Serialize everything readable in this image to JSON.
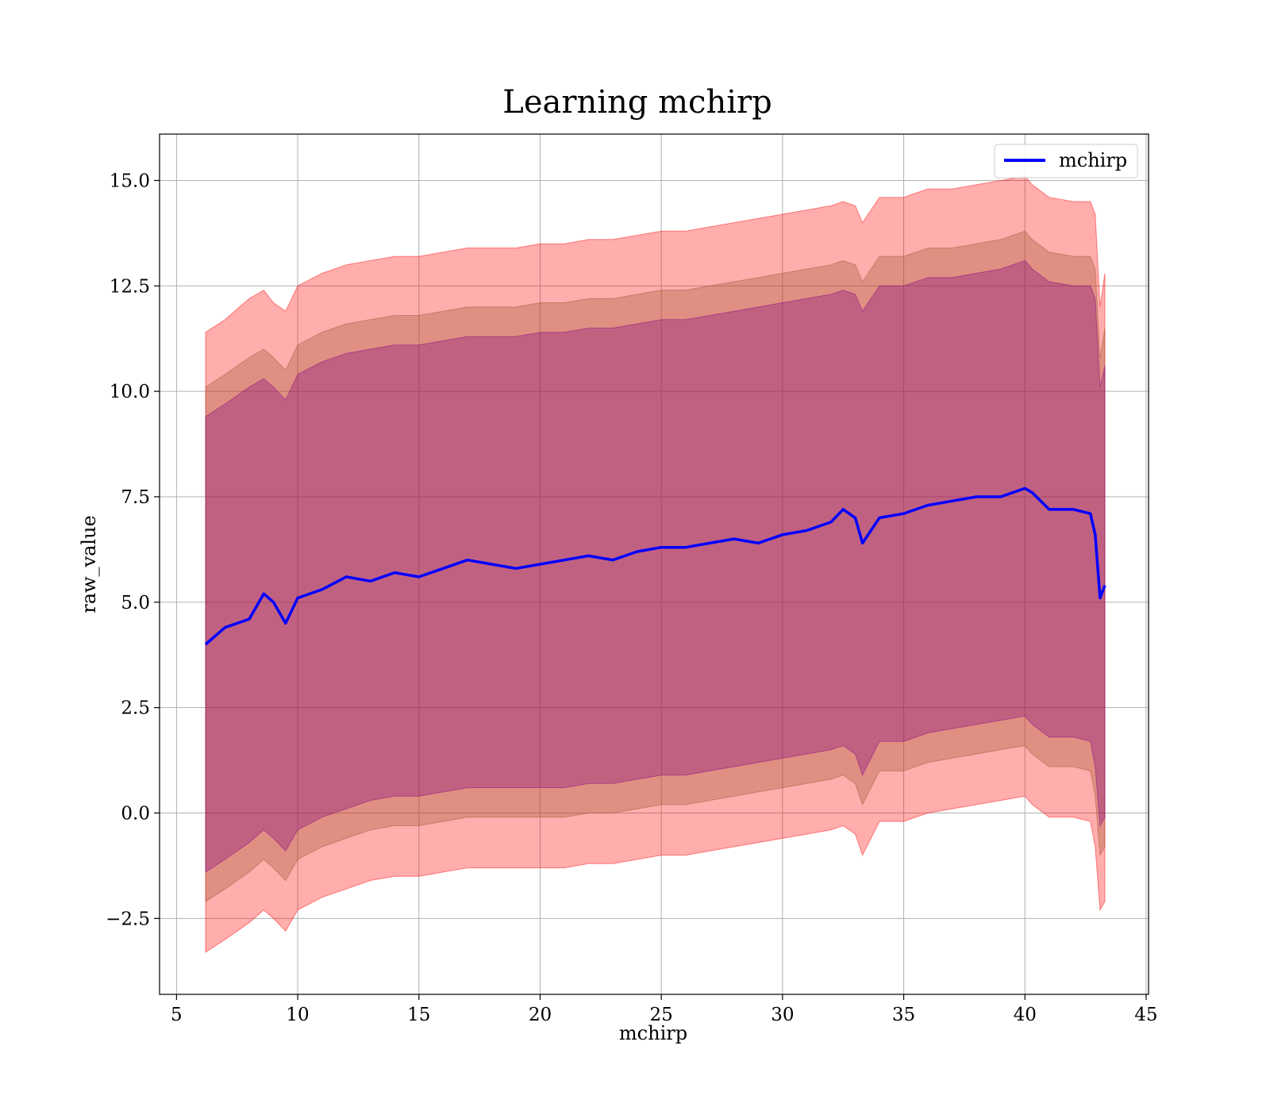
{
  "chart_data": {
    "type": "area",
    "title": "Learning mchirp",
    "xlabel": "mchirp",
    "ylabel": "raw_value",
    "xlim": [
      4.3,
      45.1
    ],
    "ylim": [
      -4.3,
      16.1
    ],
    "xticks": [
      5,
      10,
      15,
      20,
      25,
      30,
      35,
      40,
      45
    ],
    "xtick_labels": [
      "5",
      "10",
      "15",
      "20",
      "25",
      "30",
      "35",
      "40",
      "45"
    ],
    "yticks": [
      -2.5,
      0.0,
      2.5,
      5.0,
      7.5,
      10.0,
      12.5,
      15.0
    ],
    "ytick_labels": [
      "−2.5",
      "0.0",
      "2.5",
      "5.0",
      "7.5",
      "10.0",
      "12.5",
      "15.0"
    ],
    "grid": true,
    "legend": {
      "position": "top-right",
      "entries": [
        "mchirp"
      ]
    },
    "colors": {
      "line": "#0000ff",
      "band_outer": "#ff0000",
      "band_middle": "#a0522d",
      "band_inner": "#800080"
    },
    "x": [
      6.2,
      7.0,
      8.0,
      8.6,
      9.0,
      9.5,
      10.0,
      11.0,
      12.0,
      13.0,
      14.0,
      15.0,
      16.0,
      17.0,
      18.0,
      19.0,
      20.0,
      21.0,
      22.0,
      23.0,
      24.0,
      25.0,
      26.0,
      27.0,
      28.0,
      29.0,
      30.0,
      31.0,
      32.0,
      32.5,
      33.0,
      33.3,
      34.0,
      35.0,
      35.5,
      36.0,
      37.0,
      38.0,
      39.0,
      40.0,
      40.3,
      41.0,
      42.0,
      42.7,
      42.9,
      43.1,
      43.3
    ],
    "series": [
      {
        "name": "mchirp",
        "values": [
          4.0,
          4.4,
          4.6,
          5.2,
          5.0,
          4.5,
          5.1,
          5.3,
          5.6,
          5.5,
          5.7,
          5.6,
          5.8,
          6.0,
          5.9,
          5.8,
          5.9,
          6.0,
          6.1,
          6.0,
          6.2,
          6.3,
          6.3,
          6.4,
          6.5,
          6.4,
          6.6,
          6.7,
          6.9,
          7.2,
          7.0,
          6.4,
          7.0,
          7.1,
          7.2,
          7.3,
          7.4,
          7.5,
          7.5,
          7.7,
          7.6,
          7.2,
          7.2,
          7.1,
          6.6,
          5.1,
          5.4
        ]
      }
    ],
    "bands": [
      {
        "label": "outer",
        "upper": [
          11.4,
          11.7,
          12.2,
          12.4,
          12.1,
          11.9,
          12.5,
          12.8,
          13.0,
          13.1,
          13.2,
          13.2,
          13.3,
          13.4,
          13.4,
          13.4,
          13.5,
          13.5,
          13.6,
          13.6,
          13.7,
          13.8,
          13.8,
          13.9,
          14.0,
          14.1,
          14.2,
          14.3,
          14.4,
          14.5,
          14.4,
          14.0,
          14.6,
          14.6,
          14.7,
          14.8,
          14.8,
          14.9,
          15.0,
          15.1,
          14.9,
          14.6,
          14.5,
          14.5,
          14.2,
          12.0,
          12.8
        ],
        "lower": [
          -3.3,
          -3.0,
          -2.6,
          -2.3,
          -2.5,
          -2.8,
          -2.3,
          -2.0,
          -1.8,
          -1.6,
          -1.5,
          -1.5,
          -1.4,
          -1.3,
          -1.3,
          -1.3,
          -1.3,
          -1.3,
          -1.2,
          -1.2,
          -1.1,
          -1.0,
          -1.0,
          -0.9,
          -0.8,
          -0.7,
          -0.6,
          -0.5,
          -0.4,
          -0.3,
          -0.5,
          -1.0,
          -0.2,
          -0.2,
          -0.1,
          0.0,
          0.1,
          0.2,
          0.3,
          0.4,
          0.2,
          -0.1,
          -0.1,
          -0.2,
          -0.8,
          -2.3,
          -2.1
        ]
      },
      {
        "label": "middle",
        "upper": [
          10.1,
          10.4,
          10.8,
          11.0,
          10.8,
          10.5,
          11.1,
          11.4,
          11.6,
          11.7,
          11.8,
          11.8,
          11.9,
          12.0,
          12.0,
          12.0,
          12.1,
          12.1,
          12.2,
          12.2,
          12.3,
          12.4,
          12.4,
          12.5,
          12.6,
          12.7,
          12.8,
          12.9,
          13.0,
          13.1,
          13.0,
          12.6,
          13.2,
          13.2,
          13.3,
          13.4,
          13.4,
          13.5,
          13.6,
          13.8,
          13.6,
          13.3,
          13.2,
          13.2,
          12.9,
          10.8,
          11.5
        ],
        "lower": [
          -2.1,
          -1.8,
          -1.4,
          -1.1,
          -1.3,
          -1.6,
          -1.1,
          -0.8,
          -0.6,
          -0.4,
          -0.3,
          -0.3,
          -0.2,
          -0.1,
          -0.1,
          -0.1,
          -0.1,
          -0.1,
          0.0,
          0.0,
          0.1,
          0.2,
          0.2,
          0.3,
          0.4,
          0.5,
          0.6,
          0.7,
          0.8,
          0.9,
          0.7,
          0.2,
          1.0,
          1.0,
          1.1,
          1.2,
          1.3,
          1.4,
          1.5,
          1.6,
          1.4,
          1.1,
          1.1,
          1.0,
          0.4,
          -1.0,
          -0.8
        ]
      },
      {
        "label": "inner",
        "upper": [
          9.4,
          9.7,
          10.1,
          10.3,
          10.1,
          9.8,
          10.4,
          10.7,
          10.9,
          11.0,
          11.1,
          11.1,
          11.2,
          11.3,
          11.3,
          11.3,
          11.4,
          11.4,
          11.5,
          11.5,
          11.6,
          11.7,
          11.7,
          11.8,
          11.9,
          12.0,
          12.1,
          12.2,
          12.3,
          12.4,
          12.3,
          11.9,
          12.5,
          12.5,
          12.6,
          12.7,
          12.7,
          12.8,
          12.9,
          13.1,
          12.9,
          12.6,
          12.5,
          12.5,
          12.2,
          10.1,
          10.6
        ],
        "lower": [
          -1.4,
          -1.1,
          -0.7,
          -0.4,
          -0.6,
          -0.9,
          -0.4,
          -0.1,
          0.1,
          0.3,
          0.4,
          0.4,
          0.5,
          0.6,
          0.6,
          0.6,
          0.6,
          0.6,
          0.7,
          0.7,
          0.8,
          0.9,
          0.9,
          1.0,
          1.1,
          1.2,
          1.3,
          1.4,
          1.5,
          1.6,
          1.4,
          0.9,
          1.7,
          1.7,
          1.8,
          1.9,
          2.0,
          2.1,
          2.2,
          2.3,
          2.1,
          1.8,
          1.8,
          1.7,
          1.1,
          -0.3,
          -0.1
        ]
      }
    ]
  }
}
